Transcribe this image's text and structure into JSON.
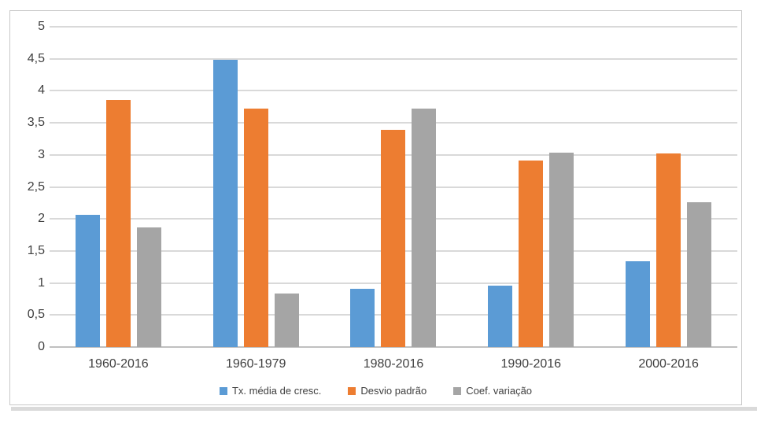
{
  "chart_data": {
    "type": "bar",
    "title": "",
    "xlabel": "",
    "ylabel": "",
    "categories": [
      "1960-2016",
      "1960-1979",
      "1980-2016",
      "1990-2016",
      "2000-2016"
    ],
    "series": [
      {
        "name": "Tx. média de cresc.",
        "color": "#5B9BD5",
        "values": [
          2.07,
          4.48,
          0.91,
          0.96,
          1.34
        ]
      },
      {
        "name": "Desvio padrão",
        "color": "#ED7D31",
        "values": [
          3.86,
          3.72,
          3.39,
          2.91,
          3.02
        ]
      },
      {
        "name": "Coef. variação",
        "color": "#A5A5A5",
        "values": [
          1.87,
          0.83,
          3.72,
          3.04,
          2.26
        ]
      }
    ],
    "ylim": [
      0,
      5
    ],
    "yticks": {
      "values": [
        0,
        0.5,
        1,
        1.5,
        2,
        2.5,
        3,
        3.5,
        4,
        4.5,
        5
      ],
      "labels": [
        "0",
        "0,5",
        "1",
        "1,5",
        "2",
        "2,5",
        "3",
        "3,5",
        "4",
        "4,5",
        "5"
      ]
    },
    "grid": true,
    "legend_position": "bottom"
  },
  "colors": {
    "gridline": "#d9d9d9",
    "axis_baseline": "#c0c0c0",
    "frame_border": "#c8c8c8",
    "shadow": "#dadada",
    "text": "#404040",
    "background": "#ffffff"
  }
}
